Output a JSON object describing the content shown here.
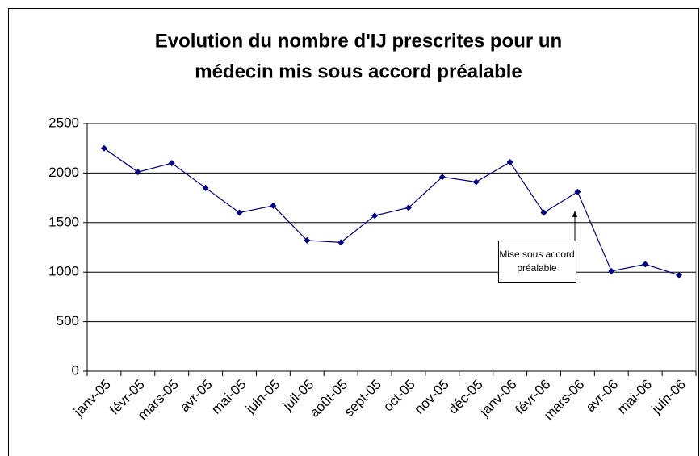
{
  "chart_data": {
    "type": "line",
    "title": [
      "Evolution du nombre d'IJ prescrites pour un",
      "médecin mis sous accord préalable"
    ],
    "categories": [
      "janv-05",
      "févr-05",
      "mars-05",
      "avr-05",
      "mai-05",
      "juin-05",
      "juil-05",
      "août-05",
      "sept-05",
      "oct-05",
      "nov-05",
      "déc-05",
      "janv-06",
      "févr-06",
      "mars-06",
      "avr-06",
      "mai-06",
      "juin-06"
    ],
    "series": [
      {
        "color": "#000080",
        "values": [
          2250,
          2010,
          2100,
          1850,
          1600,
          1670,
          1320,
          1300,
          1570,
          1650,
          1960,
          1910,
          2110,
          1600,
          1810,
          1010,
          1080,
          970
        ]
      }
    ],
    "ylim": [
      0,
      2500
    ],
    "yticks": [
      0,
      500,
      1000,
      1500,
      2000,
      2500
    ],
    "grid": true,
    "annotation": [
      "Mise sous accord",
      "préalable"
    ]
  }
}
